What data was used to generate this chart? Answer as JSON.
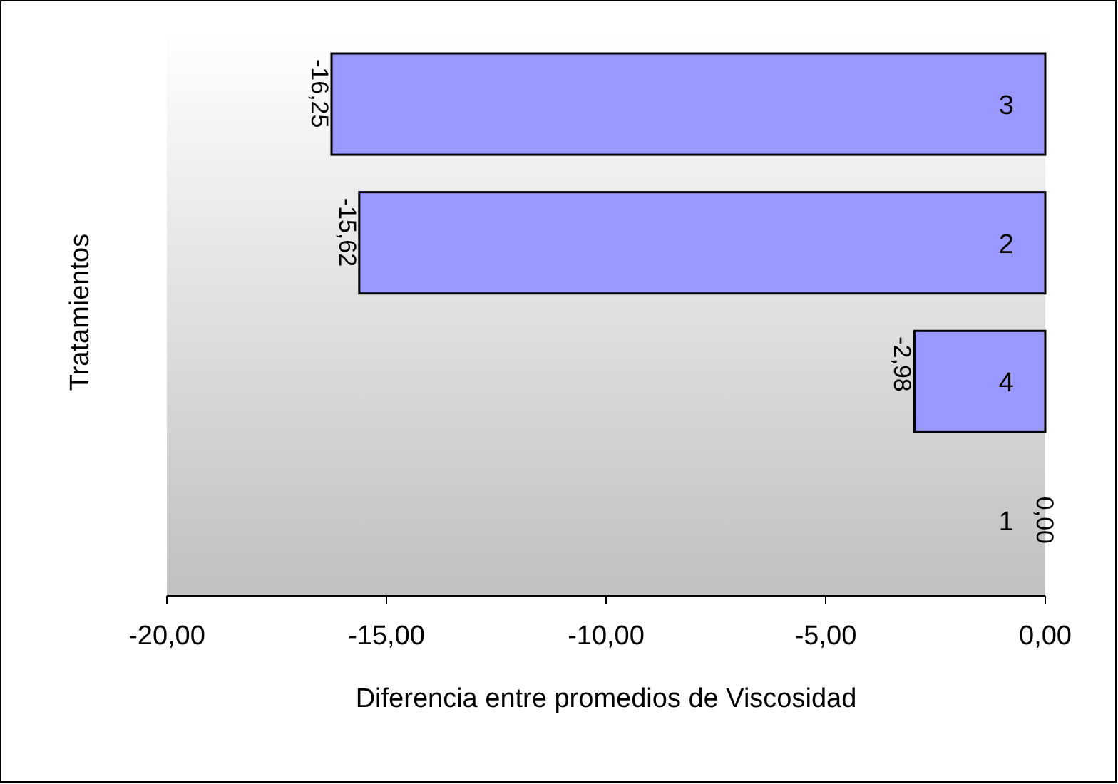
{
  "chart_data": {
    "type": "bar",
    "orientation": "horizontal",
    "categories": [
      "3",
      "2",
      "4",
      "1"
    ],
    "values": [
      -16.25,
      -15.62,
      -2.98,
      0.0
    ],
    "value_labels": [
      "-16,25",
      "-15,62",
      "-2,98",
      "0,00"
    ],
    "color": "#9999ff",
    "xlim": [
      -20,
      0
    ],
    "xticks": [
      {
        "value": -20,
        "label": "-20,00"
      },
      {
        "value": -15,
        "label": "-15,00"
      },
      {
        "value": -10,
        "label": "-10,00"
      },
      {
        "value": -5,
        "label": "-5,00"
      },
      {
        "value": 0,
        "label": "0,00"
      }
    ],
    "xlabel": "Diferencia entre promedios de Viscosidad",
    "ylabel": "Tratamientos",
    "grid": false
  }
}
